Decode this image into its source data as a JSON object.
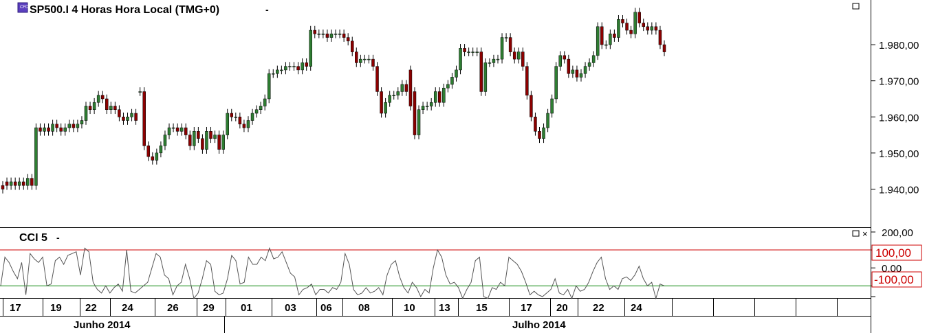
{
  "main_chart": {
    "title": "SP500.I 4 Horas Hora Local (TMG+0)",
    "title_arrow": "-",
    "icon": "cfd-icon",
    "maximize_icon": "maximize-icon",
    "bull_color": "#2e7d32",
    "bear_color": "#8b0000",
    "wick_color": "#000000"
  },
  "cci_panel": {
    "label": "CCI 5",
    "label_arrow": "-",
    "upper_line_label": "100,00",
    "lower_line_label": "-100,00",
    "upper_line_color": "#cc0000",
    "lower_line_color": "#008000",
    "series_color": "#555555"
  },
  "time_axis": {
    "days": [
      "17",
      "19",
      "22",
      "24",
      "26",
      "29",
      "01",
      "03",
      "06",
      "08",
      "10",
      "13",
      "15",
      "17",
      "20",
      "22",
      "24"
    ],
    "months": [
      "Junho 2014",
      "Julho 2014"
    ]
  },
  "chart_data": [
    {
      "type": "candlestick",
      "title": "SP500.I 4 Horas Hora Local (TMG+0)",
      "ylim": [
        1930,
        1992
      ],
      "yticks": [
        "1.940,00",
        "1.950,00",
        "1.960,00",
        "1.970,00",
        "1.980,00"
      ],
      "ytick_values": [
        1940,
        1950,
        1960,
        1970,
        1980
      ],
      "categories": [
        "17",
        "19",
        "22",
        "24",
        "26",
        "29",
        "01",
        "03",
        "06",
        "08",
        "10",
        "13",
        "15",
        "17",
        "20",
        "22",
        "24"
      ],
      "closes": [
        1940,
        1941,
        1942,
        1941,
        1942,
        1941,
        1943,
        1941,
        1957,
        1956,
        1957,
        1956,
        1958,
        1957,
        1956,
        1957,
        1958,
        1957,
        1958,
        1959,
        1963,
        1962,
        1964,
        1966,
        1965,
        1962,
        1963,
        1962,
        1960,
        1959,
        1960,
        1961,
        1959,
        1967,
        1952,
        1949,
        1948,
        1950,
        1952,
        1955,
        1957,
        1957,
        1956,
        1957,
        1955,
        1952,
        1956,
        1954,
        1951,
        1956,
        1954,
        1955,
        1951,
        1955,
        1961,
        1960,
        1960,
        1958,
        1957,
        1959,
        1961,
        1962,
        1963,
        1965,
        1972,
        1972,
        1973,
        1973,
        1974,
        1974,
        1974,
        1973,
        1975,
        1974,
        1984,
        1983,
        1983,
        1983,
        1982,
        1983,
        1983,
        1983,
        1982,
        1981,
        1978,
        1975,
        1976,
        1976,
        1976,
        1974,
        1967,
        1961,
        1964,
        1966,
        1966,
        1967,
        1969,
        1967,
        1963,
        1955,
        1962,
        1963,
        1963,
        1964,
        1967,
        1964,
        1968,
        1969,
        1971,
        1973,
        1979,
        1978,
        1978,
        1978,
        1978,
        1967,
        1975,
        1975,
        1976,
        1976,
        1982,
        1982,
        1978,
        1976,
        1978,
        1974,
        1966,
        1960,
        1956,
        1954,
        1957,
        1961,
        1965,
        1974,
        1977,
        1976,
        1972,
        1973,
        1971,
        1972,
        1974,
        1975,
        1977,
        1985,
        1980,
        1980,
        1983,
        1982,
        1987,
        1986,
        1984,
        1983,
        1989,
        1986,
        1985,
        1984,
        1985,
        1984,
        1980,
        1978
      ],
      "opens": [
        1941,
        1942,
        1941,
        1942,
        1941,
        1942,
        1941,
        1943,
        1941,
        1957,
        1956,
        1957,
        1956,
        1958,
        1957,
        1956,
        1957,
        1958,
        1957,
        1958,
        1959,
        1963,
        1962,
        1964,
        1966,
        1965,
        1962,
        1963,
        1962,
        1960,
        1959,
        1960,
        1961,
        1967,
        1967,
        1952,
        1949,
        1948,
        1950,
        1952,
        1955,
        1957,
        1957,
        1956,
        1957,
        1955,
        1952,
        1956,
        1954,
        1951,
        1956,
        1954,
        1955,
        1951,
        1955,
        1961,
        1960,
        1960,
        1958,
        1957,
        1959,
        1961,
        1962,
        1963,
        1965,
        1972,
        1972,
        1973,
        1973,
        1974,
        1974,
        1974,
        1973,
        1975,
        1974,
        1984,
        1983,
        1983,
        1983,
        1982,
        1983,
        1983,
        1983,
        1982,
        1981,
        1978,
        1975,
        1976,
        1976,
        1976,
        1974,
        1967,
        1961,
        1964,
        1966,
        1966,
        1967,
        1969,
        1973,
        1967,
        1955,
        1962,
        1963,
        1963,
        1964,
        1967,
        1964,
        1968,
        1969,
        1971,
        1973,
        1979,
        1978,
        1978,
        1978,
        1978,
        1967,
        1975,
        1975,
        1976,
        1976,
        1982,
        1982,
        1978,
        1976,
        1978,
        1974,
        1966,
        1960,
        1956,
        1954,
        1957,
        1961,
        1965,
        1974,
        1977,
        1976,
        1972,
        1973,
        1971,
        1972,
        1974,
        1975,
        1977,
        1985,
        1980,
        1980,
        1983,
        1982,
        1987,
        1986,
        1984,
        1983,
        1989,
        1986,
        1985,
        1984,
        1985,
        1984,
        1980
      ]
    },
    {
      "type": "line",
      "title": "CCI 5",
      "ylim": [
        -160,
        215
      ],
      "yticks": [
        "200,00",
        "0,00"
      ],
      "ytick_values": [
        200,
        0
      ],
      "reference_lines": [
        100,
        -100
      ],
      "values": [
        -100,
        60,
        30,
        -20,
        -60,
        30,
        -150,
        80,
        50,
        30,
        60,
        -100,
        -90,
        40,
        60,
        20,
        70,
        80,
        90,
        -40,
        110,
        90,
        -80,
        -120,
        -140,
        -100,
        -140,
        -110,
        -90,
        -130,
        100,
        -130,
        -140,
        -120,
        -100,
        -80,
        0,
        80,
        60,
        -40,
        -60,
        -150,
        -100,
        -80,
        20,
        -60,
        -170,
        -140,
        -60,
        40,
        20,
        -130,
        -150,
        -140,
        -60,
        70,
        40,
        -90,
        -80,
        60,
        20,
        20,
        60,
        40,
        110,
        50,
        60,
        90,
        30,
        -30,
        -50,
        -150,
        -120,
        -110,
        -90,
        -150,
        -120,
        -120,
        -140,
        -110,
        -120,
        -80,
        80,
        20,
        -120,
        -150,
        -140,
        -110,
        -140,
        -130,
        -110,
        -150,
        -40,
        20,
        40,
        -50,
        -110,
        -140,
        -80,
        -110,
        -160,
        -120,
        -140,
        0,
        100,
        60,
        -40,
        -90,
        -80,
        -110,
        -170,
        -120,
        -80,
        40,
        60,
        -160,
        -170,
        -110,
        -120,
        -80,
        -100,
        60,
        40,
        20,
        -20,
        -80,
        -150,
        -130,
        -150,
        -160,
        -140,
        -120,
        -60,
        -140,
        -150,
        -120,
        -170,
        -100,
        -130,
        -120,
        -80,
        -20,
        30,
        60,
        -60,
        -120,
        -100,
        -120,
        -60,
        -50,
        -70,
        -40,
        10,
        -60,
        -100,
        -80,
        -170,
        -90,
        -100
      ]
    }
  ]
}
